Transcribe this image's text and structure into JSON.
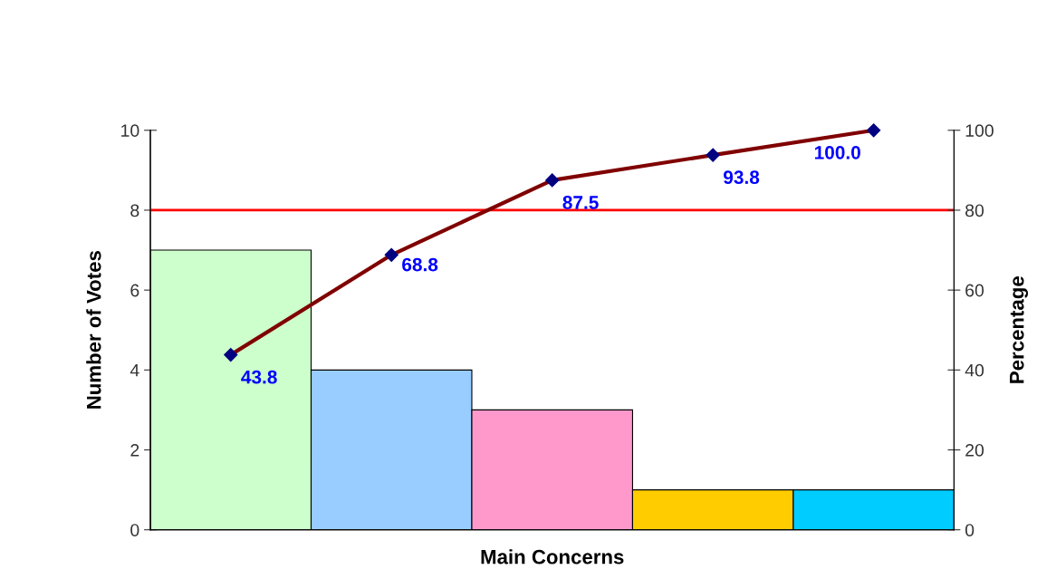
{
  "chart_data": {
    "type": "bar",
    "xlabel": "Main Concerns",
    "ylabel": "Number of Votes",
    "y2label": "Percentage",
    "categories": [
      null,
      null,
      null,
      null,
      null
    ],
    "series": [
      {
        "values": [
          7,
          4,
          3,
          1,
          1
        ],
        "colors": [
          "#ccffcc",
          "#99ccff",
          "#ff99cc",
          "#ffcc00",
          "#00ccff"
        ]
      },
      {
        "type": "line",
        "axis": "y2",
        "color": "#800000",
        "values": [
          43.8,
          68.8,
          87.5,
          93.8,
          100.0
        ],
        "value_labels": [
          "43.8",
          "68.8",
          "87.5",
          "93.8",
          "100.0"
        ]
      }
    ],
    "ylim": [
      0,
      10
    ],
    "yticks": [
      0,
      2,
      4,
      6,
      8,
      10
    ],
    "y2lim": [
      0,
      100
    ],
    "y2ticks": [
      0,
      20,
      40,
      60,
      80,
      100
    ],
    "ref_lines": [
      {
        "axis": "y",
        "value": 8,
        "color": "#ff0000"
      }
    ],
    "marker": "diamond",
    "grid": false,
    "tick_labels": "y"
  }
}
